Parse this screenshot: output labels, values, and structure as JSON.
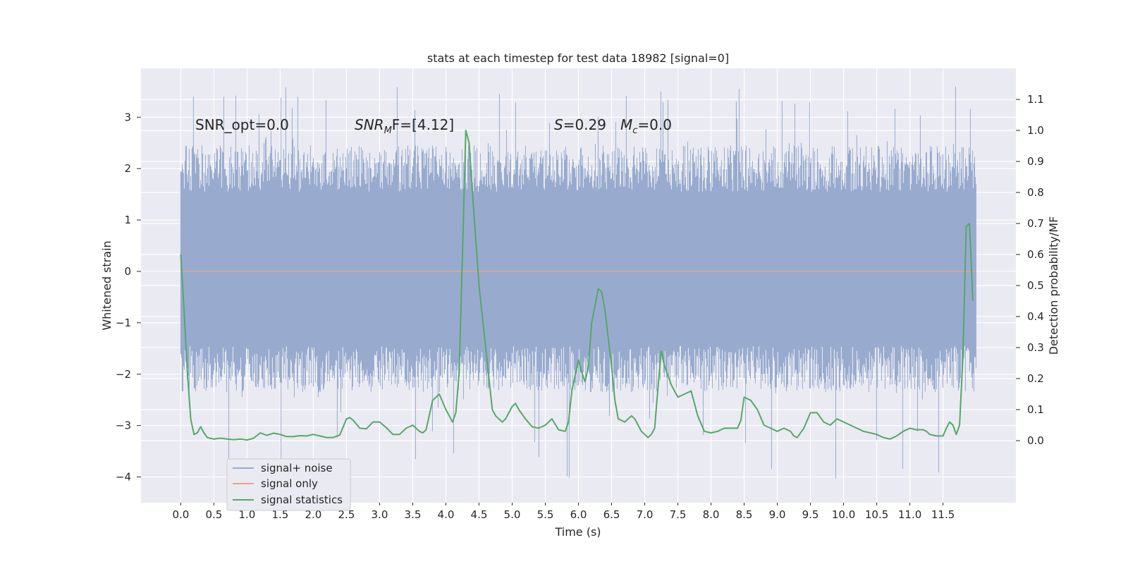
{
  "chart_data": {
    "type": "line",
    "title": "stats at each timestep for test data 18982 [signal=0]",
    "xlabel": "Time (s)",
    "ylabel_left": "Whitened strain",
    "ylabel_right": "Detection probability/MF",
    "xlim": [
      -0.6,
      12.6
    ],
    "ylim_left": [
      -4.5,
      3.95
    ],
    "ylim_right": [
      -0.2,
      1.2
    ],
    "xticks": [
      "0.0",
      "0.5",
      "1.0",
      "1.5",
      "2.0",
      "2.5",
      "3.0",
      "3.5",
      "4.0",
      "4.5",
      "5.0",
      "5.5",
      "6.0",
      "6.5",
      "7.0",
      "7.5",
      "8.0",
      "8.5",
      "9.0",
      "9.5",
      "10.0",
      "10.5",
      "11.0",
      "11.5"
    ],
    "yticks_left": [
      "3",
      "2",
      "1",
      "0",
      "−1",
      "−2",
      "−3",
      "−4"
    ],
    "yticks_right": [
      "1.1",
      "1.0",
      "0.9",
      "0.8",
      "0.7",
      "0.6",
      "0.5",
      "0.4",
      "0.3",
      "0.2",
      "0.1",
      "0.0"
    ],
    "grid": true,
    "legend_position": "lower-left",
    "annotations": {
      "snr_opt": "SNR_opt=0.0",
      "snr_mf_main": "SNR",
      "snr_mf_sub": "M",
      "snr_mf_rest": "F=[4.12]",
      "s_main": "S",
      "s_rest": "=0.29",
      "mc_main": "M",
      "mc_sub": "c",
      "mc_rest": "=0.0"
    },
    "series": [
      {
        "name": "signal+ noise",
        "axis": "left",
        "color": "#98abcf",
        "style": "dense-noise",
        "x_range": [
          0.0,
          12.0
        ],
        "envelope_core": [
          -1.45,
          1.55
        ],
        "envelope_extremes": [
          -4.1,
          3.6
        ]
      },
      {
        "name": "signal only",
        "axis": "left",
        "color": "#e8a48a",
        "x": [
          0.0,
          12.0
        ],
        "values": [
          0.0,
          0.0
        ]
      },
      {
        "name": "signal statistics",
        "axis": "right",
        "color": "#55a868",
        "x": [
          0.0,
          0.05,
          0.1,
          0.15,
          0.2,
          0.25,
          0.3,
          0.35,
          0.4,
          0.5,
          0.6,
          0.7,
          0.8,
          0.9,
          1.0,
          1.1,
          1.2,
          1.3,
          1.4,
          1.5,
          1.6,
          1.7,
          1.8,
          1.9,
          2.0,
          2.1,
          2.2,
          2.3,
          2.4,
          2.5,
          2.55,
          2.6,
          2.7,
          2.8,
          2.9,
          3.0,
          3.1,
          3.2,
          3.3,
          3.4,
          3.5,
          3.6,
          3.65,
          3.7,
          3.8,
          3.85,
          3.9,
          4.0,
          4.05,
          4.1,
          4.15,
          4.2,
          4.25,
          4.3,
          4.35,
          4.4,
          4.5,
          4.6,
          4.7,
          4.75,
          4.8,
          4.85,
          4.9,
          5.0,
          5.05,
          5.1,
          5.2,
          5.3,
          5.4,
          5.5,
          5.6,
          5.7,
          5.8,
          5.85,
          5.9,
          6.0,
          6.05,
          6.1,
          6.15,
          6.2,
          6.3,
          6.35,
          6.4,
          6.5,
          6.55,
          6.6,
          6.7,
          6.8,
          6.85,
          6.9,
          6.95,
          7.0,
          7.05,
          7.1,
          7.15,
          7.2,
          7.25,
          7.3,
          7.4,
          7.5,
          7.6,
          7.7,
          7.8,
          7.9,
          8.0,
          8.1,
          8.2,
          8.3,
          8.4,
          8.45,
          8.5,
          8.6,
          8.7,
          8.8,
          8.9,
          9.0,
          9.1,
          9.2,
          9.25,
          9.3,
          9.4,
          9.5,
          9.6,
          9.7,
          9.8,
          9.9,
          10.0,
          10.1,
          10.2,
          10.3,
          10.4,
          10.5,
          10.6,
          10.7,
          10.8,
          10.9,
          11.0,
          11.1,
          11.2,
          11.25,
          11.3,
          11.4,
          11.5,
          11.55,
          11.6,
          11.65,
          11.7,
          11.75,
          11.8,
          11.85,
          11.9,
          11.95
        ],
        "values": [
          0.6,
          0.42,
          0.22,
          0.07,
          0.02,
          0.025,
          0.045,
          0.025,
          0.01,
          0.005,
          0.008,
          0.005,
          0.003,
          0.005,
          0.002,
          0.008,
          0.025,
          0.017,
          0.024,
          0.02,
          0.013,
          0.013,
          0.016,
          0.015,
          0.02,
          0.015,
          0.01,
          0.01,
          0.018,
          0.07,
          0.074,
          0.066,
          0.04,
          0.038,
          0.06,
          0.06,
          0.042,
          0.02,
          0.02,
          0.04,
          0.05,
          0.03,
          0.025,
          0.035,
          0.13,
          0.14,
          0.15,
          0.1,
          0.08,
          0.06,
          0.09,
          0.22,
          0.6,
          1.0,
          0.96,
          0.8,
          0.5,
          0.3,
          0.1,
          0.08,
          0.07,
          0.06,
          0.07,
          0.11,
          0.12,
          0.1,
          0.07,
          0.045,
          0.04,
          0.05,
          0.07,
          0.035,
          0.03,
          0.06,
          0.16,
          0.26,
          0.22,
          0.19,
          0.24,
          0.38,
          0.49,
          0.48,
          0.42,
          0.24,
          0.13,
          0.07,
          0.06,
          0.08,
          0.07,
          0.05,
          0.03,
          0.02,
          0.01,
          0.02,
          0.04,
          0.17,
          0.29,
          0.24,
          0.18,
          0.14,
          0.15,
          0.16,
          0.08,
          0.03,
          0.025,
          0.03,
          0.04,
          0.04,
          0.04,
          0.065,
          0.14,
          0.13,
          0.1,
          0.05,
          0.04,
          0.03,
          0.04,
          0.03,
          0.015,
          0.01,
          0.04,
          0.09,
          0.09,
          0.06,
          0.05,
          0.07,
          0.06,
          0.05,
          0.04,
          0.03,
          0.025,
          0.02,
          0.01,
          0.005,
          0.015,
          0.03,
          0.04,
          0.035,
          0.035,
          0.03,
          0.02,
          0.015,
          0.015,
          0.04,
          0.06,
          0.05,
          0.02,
          0.05,
          0.27,
          0.69,
          0.7,
          0.45
        ]
      }
    ]
  }
}
